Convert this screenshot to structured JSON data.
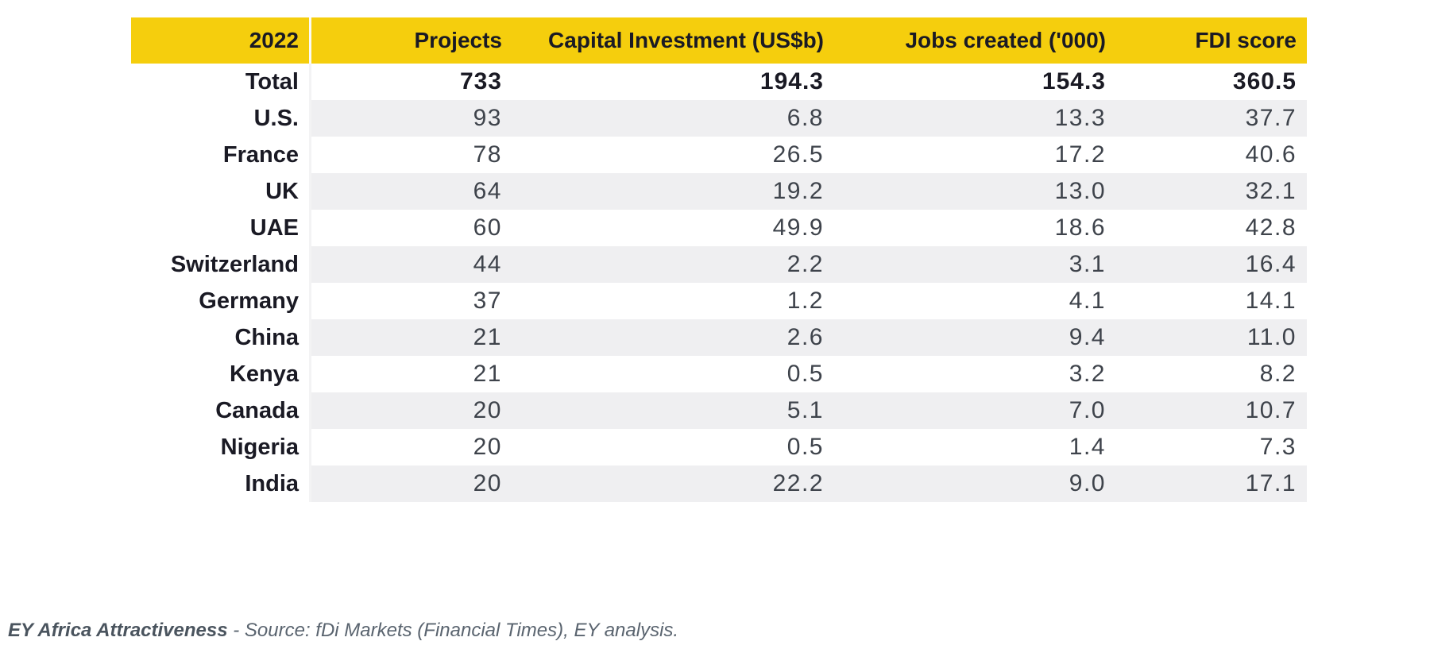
{
  "table": {
    "columns": [
      {
        "key": "label",
        "header": "2022"
      },
      {
        "key": "projects",
        "header": "Projects"
      },
      {
        "key": "capital",
        "header": "Capital Investment (US$b)"
      },
      {
        "key": "jobs",
        "header": "Jobs created ('000)"
      },
      {
        "key": "fdi",
        "header": "FDI score"
      }
    ],
    "rows": [
      {
        "label": "Total",
        "projects": "733",
        "capital": "194.3",
        "jobs": "154.3",
        "fdi": "360.5",
        "bold": true
      },
      {
        "label": "U.S.",
        "projects": "93",
        "capital": "6.8",
        "jobs": "13.3",
        "fdi": "37.7",
        "bold": false
      },
      {
        "label": "France",
        "projects": "78",
        "capital": "26.5",
        "jobs": "17.2",
        "fdi": "40.6",
        "bold": false
      },
      {
        "label": "UK",
        "projects": "64",
        "capital": "19.2",
        "jobs": "13.0",
        "fdi": "32.1",
        "bold": false
      },
      {
        "label": "UAE",
        "projects": "60",
        "capital": "49.9",
        "jobs": "18.6",
        "fdi": "42.8",
        "bold": false
      },
      {
        "label": "Switzerland",
        "projects": "44",
        "capital": "2.2",
        "jobs": "3.1",
        "fdi": "16.4",
        "bold": false
      },
      {
        "label": "Germany",
        "projects": "37",
        "capital": "1.2",
        "jobs": "4.1",
        "fdi": "14.1",
        "bold": false
      },
      {
        "label": "China",
        "projects": "21",
        "capital": "2.6",
        "jobs": "9.4",
        "fdi": "11.0",
        "bold": false
      },
      {
        "label": "Kenya",
        "projects": "21",
        "capital": "0.5",
        "jobs": "3.2",
        "fdi": "8.2",
        "bold": false
      },
      {
        "label": "Canada",
        "projects": "20",
        "capital": "5.1",
        "jobs": "7.0",
        "fdi": "10.7",
        "bold": false
      },
      {
        "label": "Nigeria",
        "projects": "20",
        "capital": "0.5",
        "jobs": "1.4",
        "fdi": "7.3",
        "bold": false
      },
      {
        "label": "India",
        "projects": "20",
        "capital": "22.2",
        "jobs": "9.0",
        "fdi": "17.1",
        "bold": false
      }
    ]
  },
  "footer": {
    "title": "EY Africa Attractiveness",
    "separator": " - ",
    "source": "Source: fDi Markets (Financial Times), EY analysis."
  },
  "colors": {
    "header_background": "#F5CE0D",
    "stripe_background": "#EFEFF1",
    "header_text": "#1A1A24",
    "value_text": "#3E434B",
    "footer_text": "#5A646F"
  },
  "chart_data": {
    "type": "table",
    "title": "EY Africa Attractiveness 2022 FDI table",
    "categories": [
      "Total",
      "U.S.",
      "France",
      "UK",
      "UAE",
      "Switzerland",
      "Germany",
      "China",
      "Kenya",
      "Canada",
      "Nigeria",
      "India"
    ],
    "series": [
      {
        "name": "Projects",
        "values": [
          733,
          93,
          78,
          64,
          60,
          44,
          37,
          21,
          21,
          20,
          20,
          20
        ]
      },
      {
        "name": "Capital Investment (US$b)",
        "values": [
          194.3,
          6.8,
          26.5,
          19.2,
          49.9,
          2.2,
          1.2,
          2.6,
          0.5,
          5.1,
          0.5,
          22.2
        ]
      },
      {
        "name": "Jobs created ('000)",
        "values": [
          154.3,
          13.3,
          17.2,
          13.0,
          18.6,
          3.1,
          4.1,
          9.4,
          3.2,
          7.0,
          1.4,
          9.0
        ]
      },
      {
        "name": "FDI score",
        "values": [
          360.5,
          37.7,
          40.6,
          32.1,
          42.8,
          16.4,
          14.1,
          11.0,
          8.2,
          10.7,
          7.3,
          17.1
        ]
      }
    ],
    "source_note": "EY Africa Attractiveness - Source: fDi Markets (Financial Times), EY analysis."
  }
}
